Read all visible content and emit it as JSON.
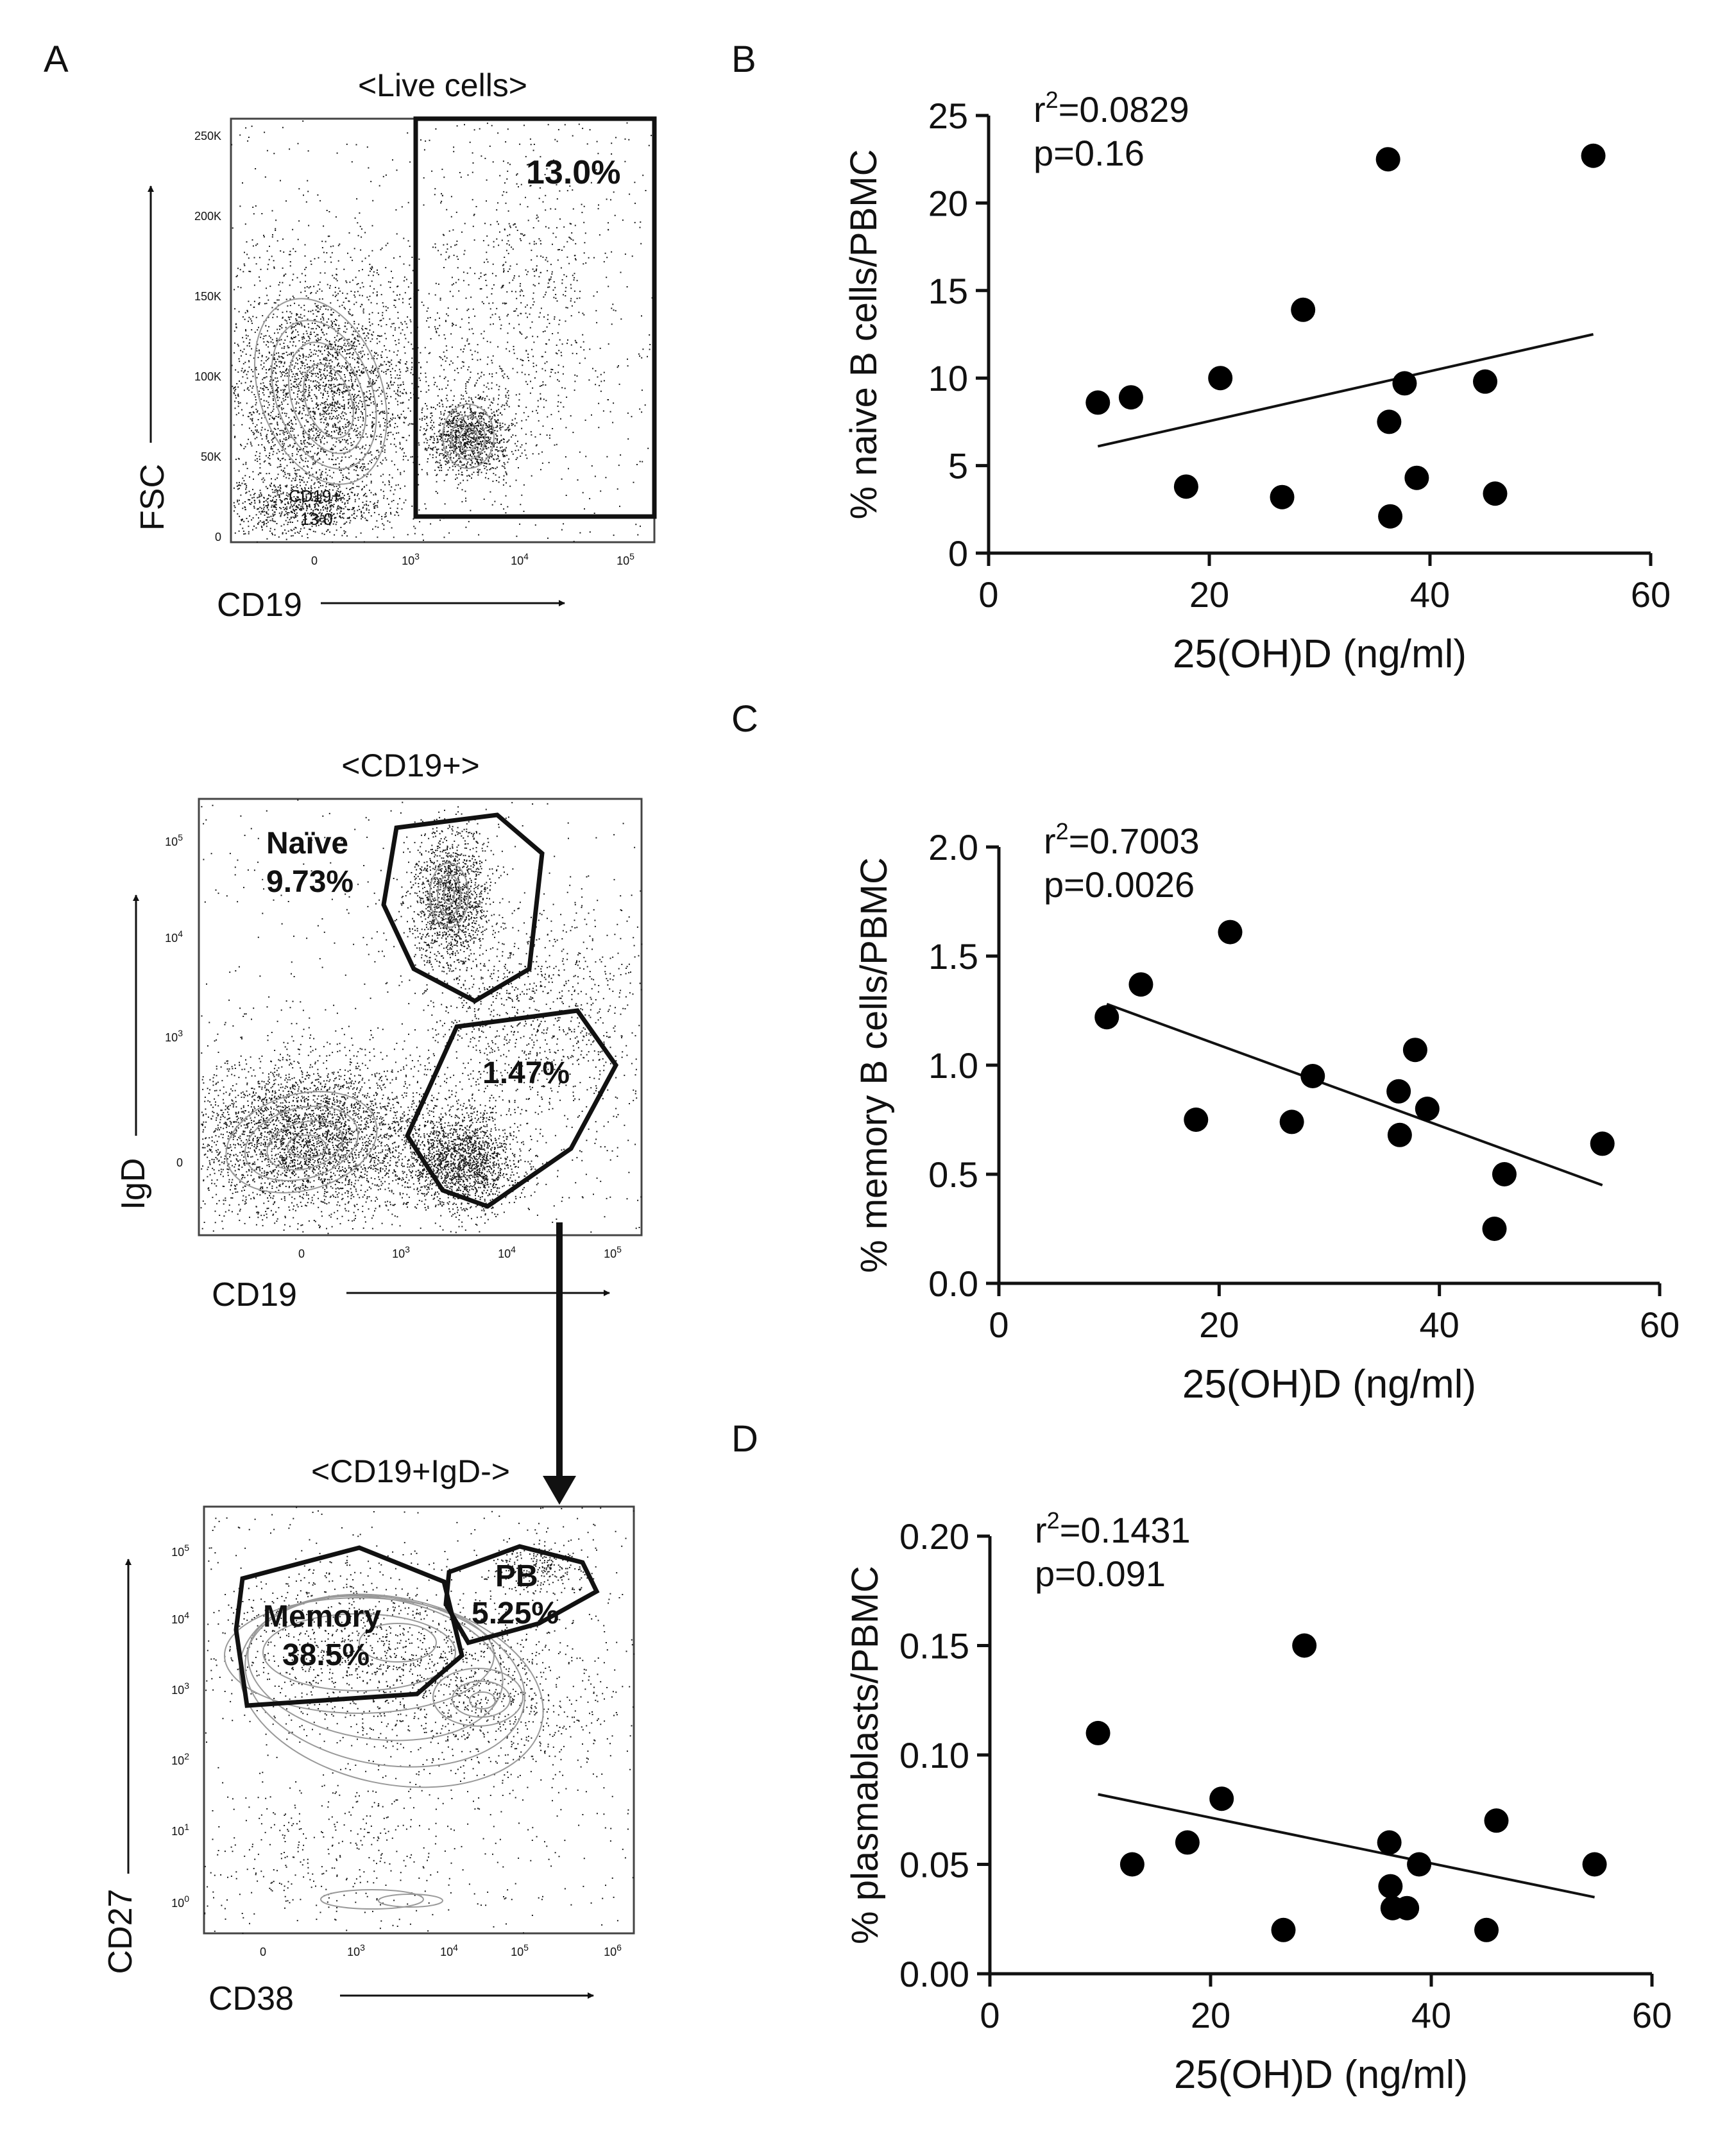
{
  "panel_letters": [
    "A",
    "B",
    "C",
    "D"
  ],
  "flow": {
    "live": {
      "title": "<Live cells>",
      "xlabel": "CD19",
      "ylabel": "FSC",
      "yticks": [
        "250K",
        "200K",
        "150K",
        "100K",
        "50K",
        "0"
      ],
      "xticks": [
        "0",
        "10",
        "10",
        "10"
      ],
      "xexp": [
        "",
        "3",
        "4",
        "5"
      ],
      "gate_pct": "13.0%",
      "gate_label": "CD19+",
      "gate_small": "13.0"
    },
    "cd19": {
      "title": "<CD19+>",
      "xlabel": "CD19",
      "ylabel": "IgD",
      "yticks": [
        "10",
        "10",
        "10",
        "0"
      ],
      "yexp": [
        "5",
        "4",
        "3",
        ""
      ],
      "xticks": [
        "0",
        "10",
        "10",
        "10"
      ],
      "xexp": [
        "",
        "3",
        "4",
        "5"
      ],
      "naive_label": "Naïve",
      "naive_pct": "9.73%",
      "igdneg_pct": "1.47%"
    },
    "igdneg": {
      "title": "<CD19+IgD->",
      "xlabel": "CD38",
      "ylabel": "CD27",
      "yticks": [
        "10",
        "10",
        "10",
        "10",
        "10",
        "10"
      ],
      "yexp": [
        "5",
        "4",
        "3",
        "2",
        "1",
        "0"
      ],
      "xticks": [
        "0",
        "10",
        "10",
        "10",
        "10"
      ],
      "xexp": [
        "",
        "3",
        "4",
        "5",
        "6"
      ],
      "memory_label": "Memory",
      "memory_pct": "38.5%",
      "pb_label": "PB",
      "pb_pct": "5.25%"
    }
  },
  "chart_data": [
    {
      "panel": "B",
      "type": "scatter",
      "xlabel": "25(OH)D (ng/ml)",
      "ylabel": "% naive B cells/PBMC",
      "xlim": [
        0,
        60
      ],
      "ylim": [
        0,
        25
      ],
      "xticks": [
        0,
        20,
        40,
        60
      ],
      "yticks": [
        0,
        5,
        10,
        15,
        20,
        25
      ],
      "ytick_labels": [
        "0",
        "5",
        "10",
        "15",
        "20",
        "25"
      ],
      "stat_r2": "=0.0829",
      "stat_p": "p=0.16",
      "x": [
        9.9,
        12.9,
        17.9,
        21.0,
        26.6,
        28.5,
        36.2,
        36.3,
        36.4,
        37.7,
        38.8,
        45.0,
        45.9,
        54.8
      ],
      "y": [
        8.6,
        8.9,
        3.8,
        10.0,
        3.2,
        13.9,
        22.5,
        7.5,
        2.1,
        9.7,
        4.3,
        9.8,
        3.4,
        22.7
      ],
      "fit": [
        [
          9.9,
          6.1
        ],
        [
          54.8,
          12.5
        ]
      ]
    },
    {
      "panel": "C",
      "type": "scatter",
      "xlabel": "25(OH)D (ng/ml)",
      "ylabel": "% memory B cells/PBMC",
      "xlim": [
        0,
        60
      ],
      "ylim": [
        0,
        2
      ],
      "xticks": [
        0,
        20,
        40,
        60
      ],
      "yticks": [
        0,
        0.5,
        1.0,
        1.5,
        2.0
      ],
      "ytick_labels": [
        "0.0",
        "0.5",
        "1.0",
        "1.5",
        "2.0"
      ],
      "stat_r2": "=0.7003",
      "stat_p": "p=0.0026",
      "x": [
        9.8,
        12.9,
        17.9,
        21.0,
        26.6,
        28.5,
        36.3,
        36.4,
        37.8,
        38.9,
        45.0,
        45.9,
        54.8
      ],
      "y": [
        1.22,
        1.37,
        0.75,
        1.61,
        0.74,
        0.95,
        0.88,
        0.68,
        1.07,
        0.8,
        0.25,
        0.5,
        0.64
      ],
      "fit": [
        [
          9.8,
          1.28
        ],
        [
          54.8,
          0.45
        ]
      ]
    },
    {
      "panel": "D",
      "type": "scatter",
      "xlabel": "25(OH)D (ng/ml)",
      "ylabel": "% plasmablasts/PBMC",
      "xlim": [
        0,
        60
      ],
      "ylim": [
        0,
        0.2
      ],
      "xticks": [
        0,
        20,
        40,
        60
      ],
      "yticks": [
        0,
        0.05,
        0.1,
        0.15,
        0.2
      ],
      "ytick_labels": [
        "0.00",
        "0.05",
        "0.10",
        "0.15",
        "0.20"
      ],
      "stat_r2": "=0.1431",
      "stat_p": "p=0.091",
      "x": [
        9.8,
        12.9,
        17.9,
        21.0,
        26.6,
        28.5,
        36.2,
        36.3,
        36.5,
        37.8,
        38.9,
        45.0,
        45.9,
        54.8
      ],
      "y": [
        0.11,
        0.05,
        0.06,
        0.08,
        0.02,
        0.15,
        0.06,
        0.04,
        0.03,
        0.03,
        0.05,
        0.02,
        0.07,
        0.05
      ],
      "fit": [
        [
          9.8,
          0.082
        ],
        [
          54.8,
          0.035
        ]
      ]
    }
  ]
}
